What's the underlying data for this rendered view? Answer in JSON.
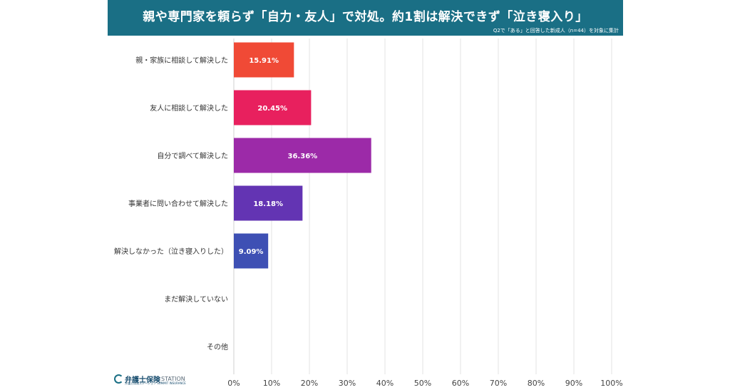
{
  "header": {
    "title": "親や専門家を頼らず「自力・友人」で対処。約1割は解決できず「泣き寝入り」",
    "note": "Q2で「ある」と回答した新成人（n=44）を対象に集計"
  },
  "logo": {
    "name": "弁護士保険",
    "suffix": "STATION",
    "sub": "弁護士保険ステーション SUMMIT INSURANCE"
  },
  "colors": {
    "banner": "#1a6f85",
    "grid": "#e3e3e3",
    "label_text": "#333333"
  },
  "chart_data": {
    "type": "bar",
    "orientation": "horizontal",
    "categories": [
      "親・家族に相談して解決した",
      "友人に相談して解決した",
      "自分で調べて解決した",
      "事業者に問い合わせて解決した",
      "解決しなかった（泣き寝入りした）",
      "まだ解決していない",
      "その他"
    ],
    "values": [
      15.91,
      20.45,
      36.36,
      18.18,
      9.09,
      0,
      0
    ],
    "value_labels": [
      "15.91%",
      "20.45%",
      "36.36%",
      "18.18%",
      "9.09%",
      "",
      ""
    ],
    "bar_colors": [
      "#f04a36",
      "#e8205e",
      "#9c2aa8",
      "#6334b3",
      "#3e50b4",
      "#3e50b4",
      "#3e50b4"
    ],
    "xlim": [
      0,
      100
    ],
    "xticks": [
      0,
      10,
      20,
      30,
      40,
      50,
      60,
      70,
      80,
      90,
      100
    ],
    "xtick_labels": [
      "0%",
      "10%",
      "20%",
      "30%",
      "40%",
      "50%",
      "60%",
      "70%",
      "80%",
      "90%",
      "100%"
    ],
    "grid": true,
    "legend": "none"
  }
}
